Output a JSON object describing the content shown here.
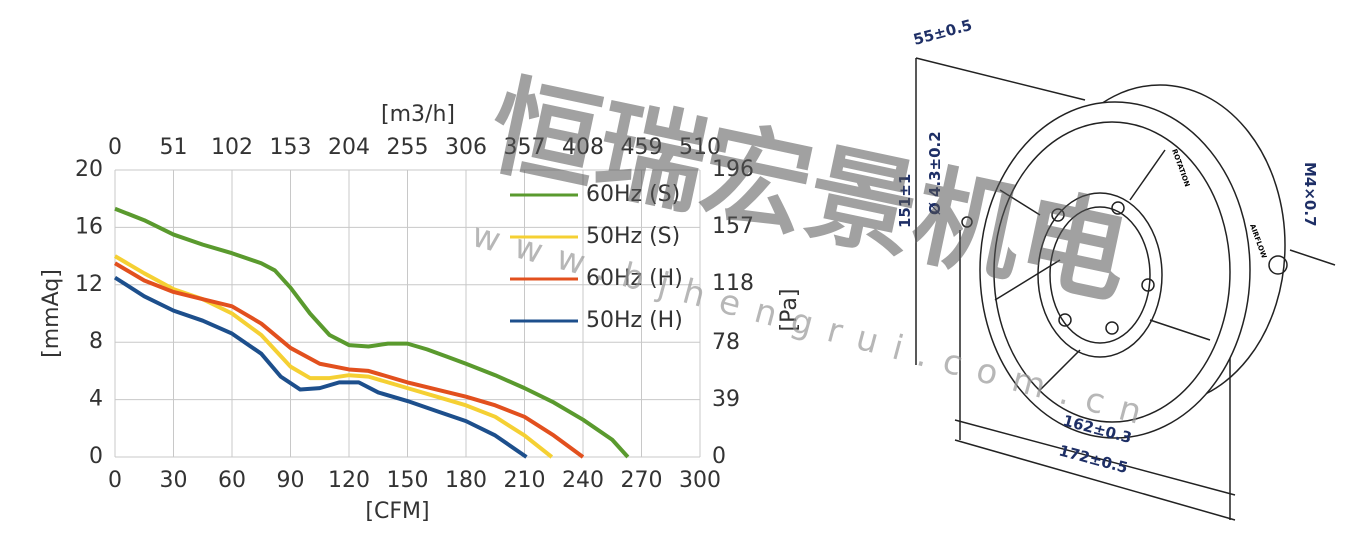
{
  "chart_data": {
    "type": "line",
    "xlabel": "[CFM]",
    "ylabel": "[mmAq]",
    "x2label": "[m3/h]",
    "y2label": "[Pa]",
    "xlim": [
      0,
      300
    ],
    "xticks": [
      0,
      30,
      60,
      90,
      120,
      150,
      180,
      210,
      240,
      270,
      300
    ],
    "ylim": [
      0,
      20
    ],
    "yticks": [
      0,
      4,
      8,
      12,
      16,
      20
    ],
    "x2lim": [
      0,
      510
    ],
    "x2ticks": [
      0,
      51,
      102,
      153,
      204,
      255,
      306,
      357,
      408,
      459,
      510
    ],
    "y2lim": [
      0,
      196
    ],
    "y2ticks": [
      0,
      39,
      78,
      118,
      157,
      196
    ],
    "grid": true,
    "legend": "upper right",
    "series": [
      {
        "name": "60Hz (S)",
        "color": "#5a9a2e",
        "x": [
          0,
          15,
          30,
          45,
          60,
          75,
          82,
          90,
          100,
          110,
          120,
          130,
          140,
          150,
          160,
          170,
          180,
          195,
          210,
          225,
          240,
          255,
          263
        ],
        "values": [
          17.3,
          16.5,
          15.5,
          14.8,
          14.2,
          13.5,
          13.0,
          11.8,
          10.0,
          8.5,
          7.8,
          7.7,
          7.9,
          7.9,
          7.5,
          7.0,
          6.5,
          5.7,
          4.8,
          3.8,
          2.6,
          1.2,
          0
        ]
      },
      {
        "name": "50Hz (S)",
        "color": "#f5d033",
        "x": [
          0,
          15,
          30,
          45,
          60,
          75,
          90,
          100,
          110,
          120,
          130,
          140,
          150,
          165,
          180,
          195,
          210,
          224
        ],
        "values": [
          14.0,
          12.8,
          11.7,
          11.0,
          10.0,
          8.5,
          6.3,
          5.5,
          5.5,
          5.7,
          5.6,
          5.2,
          4.8,
          4.2,
          3.6,
          2.8,
          1.5,
          0
        ]
      },
      {
        "name": "60Hz (H)",
        "color": "#e2501e",
        "x": [
          0,
          15,
          30,
          45,
          60,
          75,
          90,
          105,
          120,
          130,
          140,
          150,
          165,
          180,
          195,
          210,
          225,
          240
        ],
        "values": [
          13.5,
          12.3,
          11.5,
          11.0,
          10.5,
          9.3,
          7.6,
          6.5,
          6.1,
          6.0,
          5.6,
          5.2,
          4.7,
          4.2,
          3.6,
          2.8,
          1.5,
          0
        ]
      },
      {
        "name": "50Hz (H)",
        "color": "#1d4f8c",
        "x": [
          0,
          15,
          30,
          45,
          60,
          75,
          85,
          95,
          105,
          115,
          125,
          135,
          150,
          165,
          180,
          195,
          211
        ],
        "values": [
          12.5,
          11.2,
          10.2,
          9.5,
          8.6,
          7.2,
          5.6,
          4.7,
          4.8,
          5.2,
          5.2,
          4.5,
          3.9,
          3.2,
          2.5,
          1.5,
          0
        ]
      }
    ]
  },
  "drawing": {
    "depth": "55±0.5",
    "hole": "Ø 4.3±0.2",
    "height": "151±1",
    "thread": "M4×0.7",
    "inner_width": "162±0.3",
    "outer_width": "172±0.5",
    "rotation": "ROTATION",
    "airflow": "AIRFLOW"
  },
  "watermark": {
    "logo": "恒瑞宏景机电",
    "url": "www.bjhengrui.com.cn"
  }
}
